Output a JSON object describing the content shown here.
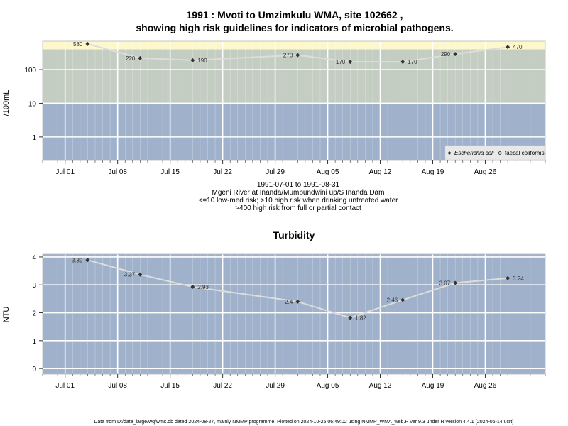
{
  "colors": {
    "plot_bg": "#a0b2cb",
    "med_band": "#c4cdc2",
    "high_band": "#fcf8cc",
    "grid": "#ffffff",
    "line": "#dddddd",
    "marker": "#333333"
  },
  "top_chart": {
    "title_line1": "1991 : Mvoti to Umzimkulu WMA, site 102662 ,",
    "title_line2": "showing high risk guidelines for indicators of microbial pathogens.",
    "ylabel": "/100mL",
    "subtitle_lines": [
      "1991-07-01 to 1991-08-31",
      "Mgeni River at Inanda/Mumbundwini up/S Inanda Dam",
      "<=10 low-med risk; >10 high risk when drinking untreated water",
      ">400 high risk from full or partial contact"
    ],
    "legend": [
      "Escherichia coli",
      "faecal coliforms"
    ]
  },
  "bottom_chart": {
    "title": "Turbidity",
    "ylabel": "NTU"
  },
  "footer": "Data from D:/data_large/wq/wms.db dated 2024-08-27, mainly NMMP programme. Plotted on 2024-10-25 06:49:02 using NMMP_WMA_web.R ver 9.3 under R version 4.4.1 (2024-06-14 ucrt)",
  "chart_data": [
    {
      "type": "line",
      "scale": "log",
      "x_tick_labels": [
        "Jul 01",
        "Jul 08",
        "Jul 15",
        "Jul 22",
        "Jul 29",
        "Aug 05",
        "Aug 12",
        "Aug 19",
        "Aug 26"
      ],
      "x_tick_dates": [
        "1991-07-01",
        "1991-07-08",
        "1991-07-15",
        "1991-07-22",
        "1991-07-29",
        "1991-08-05",
        "1991-08-12",
        "1991-08-19",
        "1991-08-26"
      ],
      "xlim": [
        "1991-06-28",
        "1991-09-03"
      ],
      "y_ticks": [
        1,
        10,
        100
      ],
      "y_tick_labels": [
        "1",
        "10",
        "100"
      ],
      "ylim": [
        0.2,
        700
      ],
      "bands": [
        {
          "from": 0.2,
          "to": 10,
          "color": "#a0b2cb"
        },
        {
          "from": 10,
          "to": 400,
          "color": "#c4cdc2"
        },
        {
          "from": 400,
          "to": 700,
          "color": "#fcf8cc"
        }
      ],
      "series": [
        {
          "name": "faecal coliforms",
          "x": [
            "1991-07-04",
            "1991-07-11",
            "1991-07-18",
            "1991-08-01",
            "1991-08-08",
            "1991-08-15",
            "1991-08-22",
            "1991-08-29"
          ],
          "values": [
            580,
            220,
            190,
            270,
            170,
            170,
            290,
            470
          ],
          "labels": [
            "580",
            "220",
            "190",
            "270",
            "170",
            "170",
            "290",
            "470"
          ]
        }
      ],
      "legend_position": "bottom-right",
      "grid": true
    },
    {
      "type": "line",
      "x_tick_labels": [
        "Jul 01",
        "Jul 08",
        "Jul 15",
        "Jul 22",
        "Jul 29",
        "Aug 05",
        "Aug 12",
        "Aug 19",
        "Aug 26"
      ],
      "x_tick_dates": [
        "1991-07-01",
        "1991-07-08",
        "1991-07-15",
        "1991-07-22",
        "1991-07-29",
        "1991-08-05",
        "1991-08-12",
        "1991-08-19",
        "1991-08-26"
      ],
      "xlim": [
        "1991-06-28",
        "1991-09-03"
      ],
      "y_ticks": [
        0,
        1,
        2,
        3,
        4
      ],
      "y_tick_labels": [
        "0",
        "1",
        "2",
        "3",
        "4"
      ],
      "ylim": [
        -0.2,
        4.1
      ],
      "series": [
        {
          "name": "",
          "x": [
            "1991-07-04",
            "1991-07-11",
            "1991-07-18",
            "1991-08-01",
            "1991-08-08",
            "1991-08-15",
            "1991-08-22",
            "1991-08-29"
          ],
          "values": [
            3.89,
            3.37,
            2.93,
            2.4,
            1.82,
            2.46,
            3.07,
            3.24
          ],
          "labels": [
            "3.89",
            "3.37",
            "2.93",
            "2.4",
            "1.82",
            "2.46",
            "3.07",
            "3.24"
          ]
        }
      ],
      "grid": true
    }
  ]
}
